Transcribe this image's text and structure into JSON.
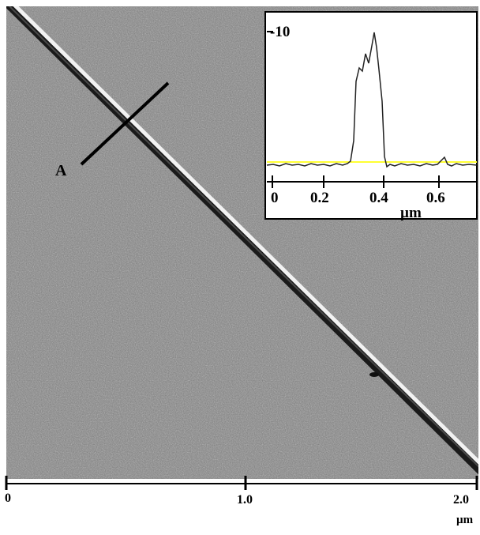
{
  "main_image": {
    "x_axis": {
      "ticks": [
        "0",
        "1.0",
        "2.0"
      ],
      "unit": "µm"
    },
    "profile_label": "A"
  },
  "inset": {
    "y_tick": "-10",
    "x_ticks": [
      "0",
      "0.2",
      "0.4",
      "0.6"
    ],
    "x_unit": "µm",
    "baseline_color": "#ffff33"
  }
}
